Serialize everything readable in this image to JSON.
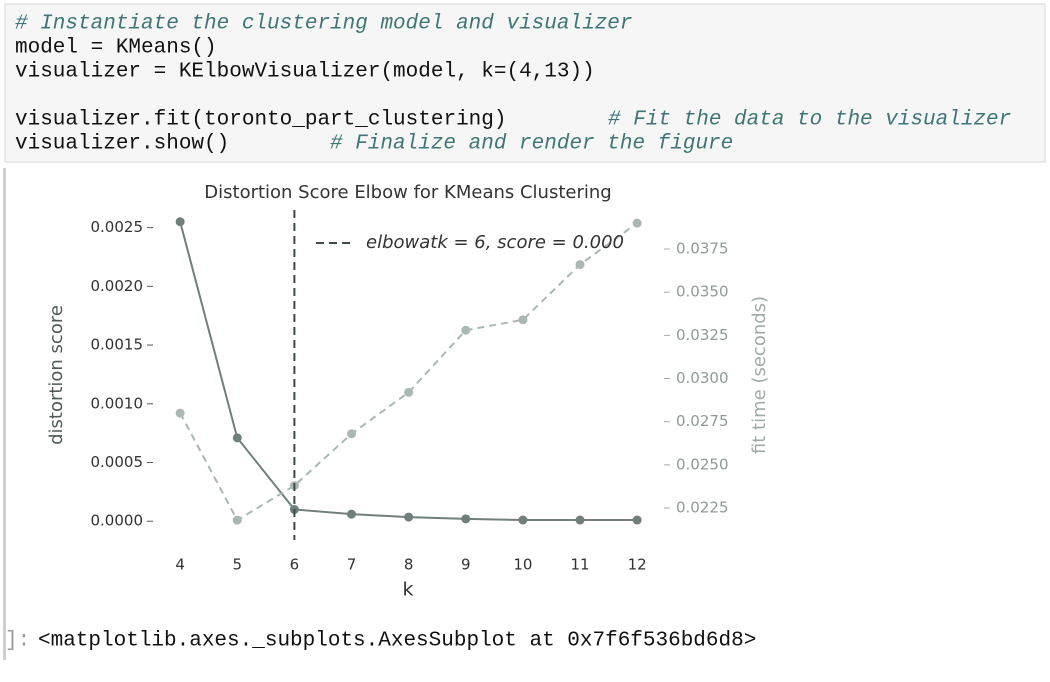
{
  "code_cell": {
    "lines": [
      {
        "comment": "# Instantiate the clustering model and visualizer"
      },
      {
        "code": "model = KMeans()"
      },
      {
        "code": "visualizer = KElbowVisualizer(model, k=(4,13))"
      },
      {
        "code": "visualizer.fit(toronto_part_clustering)",
        "comment": "# Fit the data to the visualizer"
      },
      {
        "code": "visualizer.show()",
        "comment": "# Finalize and render the figure"
      }
    ]
  },
  "chart_data": {
    "type": "line",
    "title": "Distortion Score Elbow for KMeans Clustering",
    "x_label": "k",
    "y_label": "distortion score",
    "y2_label": "fit time (seconds)",
    "x": [
      4,
      5,
      6,
      7,
      8,
      9,
      10,
      11,
      12
    ],
    "series": [
      {
        "name": "distortion score",
        "color": "#6f7f7c",
        "values": [
          0.00255,
          0.00071,
          0.0001,
          6e-05,
          3.5e-05,
          2e-05,
          1e-05,
          1e-05,
          1e-05
        ]
      },
      {
        "name": "fit time (seconds)",
        "color": "#a9b8b2",
        "axis": "y2",
        "values": [
          0.028,
          0.0218,
          0.0238,
          0.0268,
          0.0292,
          0.0328,
          0.0334,
          0.0366,
          0.039
        ]
      }
    ],
    "elbow_k": 6,
    "elbow_color": "#3f4a48",
    "legend_label": "elbowatk = 6, score = 0.000",
    "legend": "upper right",
    "xlim": [
      3.56,
      12.4
    ],
    "xticks": [
      4,
      5,
      6,
      7,
      8,
      9,
      10,
      11,
      12
    ],
    "ylim": [
      -0.00016,
      0.00265
    ],
    "yticks": [
      {
        "value": 0,
        "label": "0.0000"
      },
      {
        "value": 0.0005,
        "label": "0.0005"
      },
      {
        "value": 0.001,
        "label": "0.0010"
      },
      {
        "value": 0.0015,
        "label": "0.0015"
      },
      {
        "value": 0.002,
        "label": "0.0020"
      },
      {
        "value": 0.0025,
        "label": "0.0025"
      }
    ],
    "y2lim": [
      0.02065,
      0.03976
    ],
    "y2ticks": [
      {
        "value": 0.0225,
        "label": "0.0225"
      },
      {
        "value": 0.025,
        "label": "0.0250"
      },
      {
        "value": 0.0275,
        "label": "0.0275"
      },
      {
        "value": 0.03,
        "label": "0.0300"
      },
      {
        "value": 0.0325,
        "label": "0.0325"
      },
      {
        "value": 0.035,
        "label": "0.0350"
      },
      {
        "value": 0.0375,
        "label": "0.0375"
      }
    ]
  },
  "output": {
    "prompt": "]:",
    "text": "<matplotlib.axes._subplots.AxesSubplot at 0x7f6f536bd6d8>"
  }
}
